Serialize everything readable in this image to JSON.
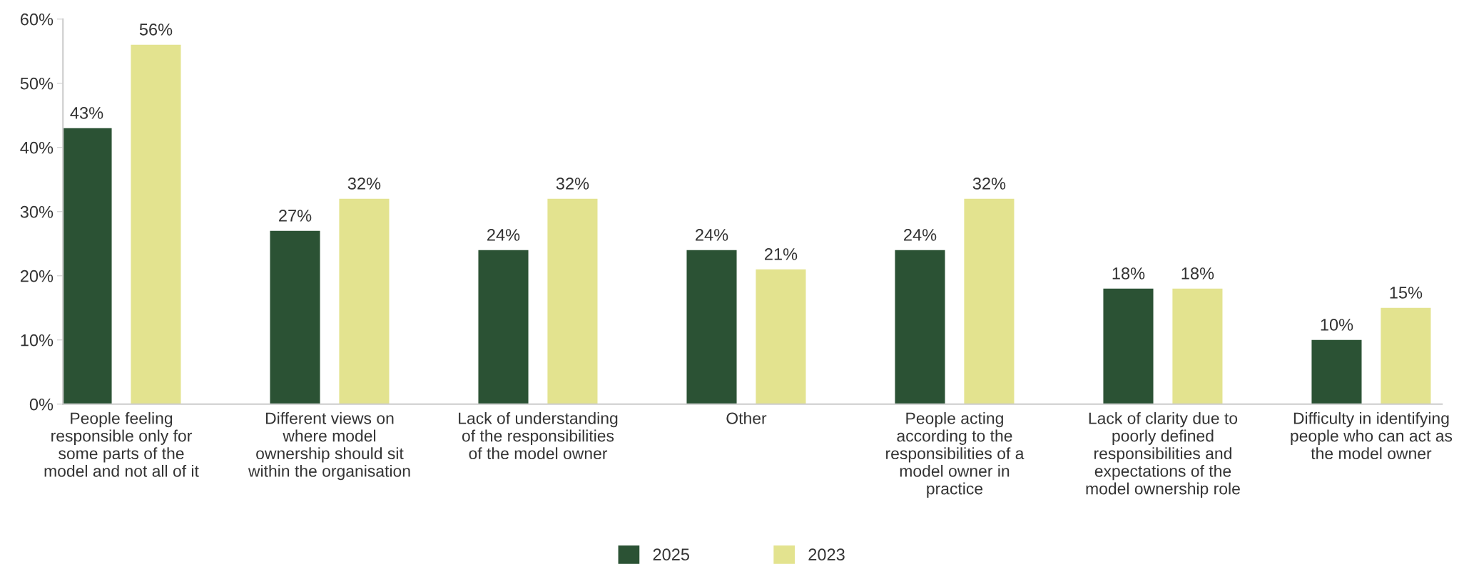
{
  "chart_data": {
    "type": "bar",
    "categories": [
      "People feeling\nresponsible only for\nsome parts of the\nmodel and not all of it",
      "Different views on\nwhere model\nownership should sit\nwithin the organisation",
      "Lack of understanding\nof the responsibilities\nof the model owner",
      "Other",
      "People acting\naccording to the\nresponsibilities of a\nmodel owner in\npractice",
      "Lack of clarity due to\npoorly defined\nresponsibilities and\nexpectations of the\nmodel ownership role",
      "Difficulty in identifying\npeople who can act as\nthe model owner"
    ],
    "series": [
      {
        "name": "2025",
        "color": "#2b5234",
        "values": [
          43,
          27,
          24,
          24,
          24,
          18,
          10
        ],
        "value_labels": [
          "43%",
          "27%",
          "24%",
          "24%",
          "24%",
          "18%",
          "10%"
        ]
      },
      {
        "name": "2023",
        "color": "#e3e38f",
        "values": [
          56,
          32,
          32,
          21,
          32,
          18,
          15
        ],
        "value_labels": [
          "56%",
          "32%",
          "32%",
          "21%",
          "32%",
          "18%",
          "15%"
        ]
      }
    ],
    "ylim": [
      0,
      60
    ],
    "yticks": [
      {
        "value": 0,
        "label": "0%"
      },
      {
        "value": 10,
        "label": "10%"
      },
      {
        "value": 20,
        "label": "20%"
      },
      {
        "value": 30,
        "label": "30%"
      },
      {
        "value": 40,
        "label": "40%"
      },
      {
        "value": 50,
        "label": "50%"
      },
      {
        "value": 60,
        "label": "60%"
      }
    ],
    "grid": false,
    "legend": "bottom"
  }
}
